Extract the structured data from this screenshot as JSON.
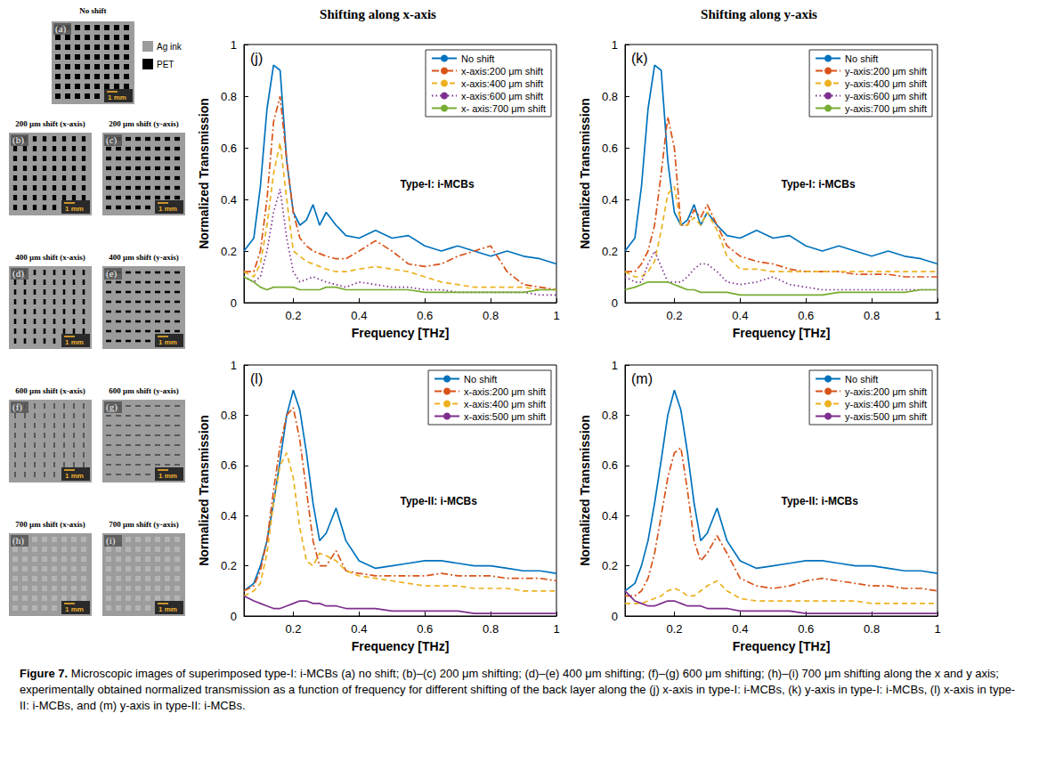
{
  "column_titles": [
    "Shifting along x-axis",
    "Shifting along y-axis"
  ],
  "images": {
    "legend": [
      {
        "label": "Ag ink",
        "color": "#9c9c9c"
      },
      {
        "label": "PET",
        "color": "#000000"
      }
    ],
    "scale_bar": "1 mm",
    "panels": [
      {
        "letter": "(a)",
        "title": "No shift",
        "shift_um": 0,
        "axis": null
      },
      {
        "letter": "(b)",
        "title": "200 μm shift (x-axis)",
        "shift_um": 200,
        "axis": "x"
      },
      {
        "letter": "(c)",
        "title": "200 μm shift (y-axis)",
        "shift_um": 200,
        "axis": "y"
      },
      {
        "letter": "(d)",
        "title": "400 μm shift (x-axis)",
        "shift_um": 400,
        "axis": "x"
      },
      {
        "letter": "(e)",
        "title": "400 μm shift (y-axis)",
        "shift_um": 400,
        "axis": "y"
      },
      {
        "letter": "(f)",
        "title": "600 μm shift (x-axis)",
        "shift_um": 600,
        "axis": "x"
      },
      {
        "letter": "(g)",
        "title": "600 μm shift (y-axis)",
        "shift_um": 600,
        "axis": "y"
      },
      {
        "letter": "(h)",
        "title": "700 μm shift (x-axis)",
        "shift_um": 700,
        "axis": "x"
      },
      {
        "letter": "(i)",
        "title": "700 μm shift (y-axis)",
        "shift_um": 700,
        "axis": "y"
      }
    ]
  },
  "chart_data": [
    {
      "type": "line",
      "panel": "(j)",
      "column": 0,
      "annotation": "Type-I: i-MCBs",
      "x_label": "Frequency [THz]",
      "y_label": "Normalized Transmission",
      "x": [
        0.05,
        0.08,
        0.1,
        0.12,
        0.14,
        0.16,
        0.18,
        0.2,
        0.22,
        0.24,
        0.26,
        0.28,
        0.3,
        0.33,
        0.36,
        0.4,
        0.45,
        0.5,
        0.55,
        0.6,
        0.65,
        0.7,
        0.75,
        0.8,
        0.85,
        0.9,
        0.95,
        1
      ],
      "xlim": [
        0.05,
        1
      ],
      "xticks": [
        0.2,
        0.4,
        0.6,
        0.8,
        1
      ],
      "ylim": [
        0,
        1
      ],
      "yticks": [
        0,
        0.2,
        0.4,
        0.6,
        0.8,
        1
      ],
      "grid": false,
      "legend": "upper right",
      "series": [
        {
          "name": "No shift",
          "color": "#0072BD",
          "line_style": "solid",
          "values": [
            0.2,
            0.25,
            0.45,
            0.75,
            0.92,
            0.9,
            0.55,
            0.35,
            0.3,
            0.32,
            0.38,
            0.3,
            0.35,
            0.3,
            0.26,
            0.25,
            0.28,
            0.25,
            0.26,
            0.22,
            0.2,
            0.22,
            0.2,
            0.18,
            0.2,
            0.18,
            0.17,
            0.15
          ]
        },
        {
          "name": "x-axis:200 μm shift",
          "color": "#D95319",
          "line_style": "dashdot",
          "values": [
            0.12,
            0.12,
            0.2,
            0.4,
            0.7,
            0.8,
            0.55,
            0.35,
            0.25,
            0.22,
            0.2,
            0.19,
            0.18,
            0.17,
            0.17,
            0.2,
            0.24,
            0.2,
            0.15,
            0.14,
            0.15,
            0.18,
            0.2,
            0.22,
            0.12,
            0.07,
            0.06,
            0.05
          ]
        },
        {
          "name": "x-axis:400 μm shift",
          "color": "#EDB120",
          "line_style": "dashed",
          "values": [
            0.12,
            0.1,
            0.15,
            0.3,
            0.5,
            0.62,
            0.4,
            0.2,
            0.18,
            0.16,
            0.15,
            0.14,
            0.13,
            0.12,
            0.12,
            0.13,
            0.14,
            0.13,
            0.12,
            0.1,
            0.08,
            0.07,
            0.06,
            0.06,
            0.06,
            0.06,
            0.05,
            0.05
          ]
        },
        {
          "name": "x-axis:600 μm shift",
          "color": "#7E2F8E",
          "line_style": "dotted",
          "values": [
            0.1,
            0.08,
            0.1,
            0.2,
            0.35,
            0.44,
            0.25,
            0.12,
            0.08,
            0.09,
            0.1,
            0.09,
            0.08,
            0.07,
            0.06,
            0.08,
            0.07,
            0.06,
            0.06,
            0.05,
            0.05,
            0.04,
            0.04,
            0.04,
            0.04,
            0.04,
            0.03,
            0.03
          ]
        },
        {
          "name": "x- axis:700 μm shift",
          "color": "#77AC30",
          "line_style": "solid",
          "values": [
            0.1,
            0.08,
            0.06,
            0.05,
            0.06,
            0.06,
            0.06,
            0.06,
            0.05,
            0.05,
            0.05,
            0.05,
            0.06,
            0.06,
            0.05,
            0.05,
            0.05,
            0.05,
            0.05,
            0.04,
            0.04,
            0.04,
            0.04,
            0.04,
            0.04,
            0.04,
            0.05,
            0.05
          ]
        }
      ]
    },
    {
      "type": "line",
      "panel": "(k)",
      "column": 1,
      "annotation": "Type-I: i-MCBs",
      "x_label": "Frequency [THz]",
      "y_label": "Normalized Transmission",
      "x": [
        0.05,
        0.08,
        0.1,
        0.12,
        0.14,
        0.16,
        0.18,
        0.2,
        0.22,
        0.24,
        0.26,
        0.28,
        0.3,
        0.33,
        0.36,
        0.4,
        0.45,
        0.5,
        0.55,
        0.6,
        0.65,
        0.7,
        0.75,
        0.8,
        0.85,
        0.9,
        0.95,
        1
      ],
      "xlim": [
        0.05,
        1
      ],
      "xticks": [
        0.2,
        0.4,
        0.6,
        0.8,
        1
      ],
      "ylim": [
        0,
        1
      ],
      "yticks": [
        0,
        0.2,
        0.4,
        0.6,
        0.8,
        1
      ],
      "grid": false,
      "legend": "upper right",
      "series": [
        {
          "name": "No shift",
          "color": "#0072BD",
          "line_style": "solid",
          "values": [
            0.2,
            0.25,
            0.45,
            0.75,
            0.92,
            0.9,
            0.55,
            0.35,
            0.3,
            0.32,
            0.38,
            0.3,
            0.35,
            0.3,
            0.26,
            0.25,
            0.28,
            0.25,
            0.26,
            0.22,
            0.2,
            0.22,
            0.2,
            0.18,
            0.2,
            0.18,
            0.17,
            0.15
          ]
        },
        {
          "name": "y-axis:200 μm shift",
          "color": "#D95319",
          "line_style": "dashdot",
          "values": [
            0.12,
            0.12,
            0.15,
            0.2,
            0.3,
            0.5,
            0.72,
            0.6,
            0.3,
            0.3,
            0.36,
            0.33,
            0.38,
            0.3,
            0.22,
            0.18,
            0.16,
            0.15,
            0.13,
            0.12,
            0.12,
            0.12,
            0.11,
            0.11,
            0.11,
            0.1,
            0.1,
            0.1
          ]
        },
        {
          "name": "y-axis:400 μm shift",
          "color": "#EDB120",
          "line_style": "dashed",
          "values": [
            0.12,
            0.1,
            0.1,
            0.12,
            0.16,
            0.28,
            0.42,
            0.45,
            0.3,
            0.3,
            0.33,
            0.3,
            0.35,
            0.28,
            0.18,
            0.13,
            0.13,
            0.12,
            0.12,
            0.12,
            0.12,
            0.12,
            0.12,
            0.12,
            0.12,
            0.12,
            0.12,
            0.12
          ]
        },
        {
          "name": "y-axis:600 μm shift",
          "color": "#7E2F8E",
          "line_style": "dotted",
          "values": [
            0.1,
            0.08,
            0.08,
            0.15,
            0.2,
            0.14,
            0.08,
            0.08,
            0.08,
            0.1,
            0.13,
            0.15,
            0.15,
            0.12,
            0.08,
            0.07,
            0.08,
            0.1,
            0.07,
            0.06,
            0.05,
            0.05,
            0.05,
            0.05,
            0.05,
            0.05,
            0.05,
            0.05
          ]
        },
        {
          "name": "y-axis:700 μm shift",
          "color": "#77AC30",
          "line_style": "solid",
          "values": [
            0.05,
            0.06,
            0.07,
            0.08,
            0.08,
            0.08,
            0.08,
            0.07,
            0.06,
            0.05,
            0.05,
            0.04,
            0.04,
            0.04,
            0.04,
            0.03,
            0.03,
            0.03,
            0.03,
            0.03,
            0.03,
            0.04,
            0.04,
            0.04,
            0.04,
            0.04,
            0.05,
            0.05
          ]
        }
      ]
    },
    {
      "type": "line",
      "panel": "(l)",
      "column": 0,
      "annotation": "Type-II: i-MCBs",
      "x_label": "Frequency [THz]",
      "y_label": "Normalized Transmission",
      "x": [
        0.05,
        0.08,
        0.1,
        0.12,
        0.14,
        0.16,
        0.18,
        0.2,
        0.22,
        0.24,
        0.26,
        0.28,
        0.3,
        0.33,
        0.36,
        0.4,
        0.45,
        0.5,
        0.55,
        0.6,
        0.65,
        0.7,
        0.75,
        0.8,
        0.85,
        0.9,
        0.95,
        1
      ],
      "xlim": [
        0.05,
        1
      ],
      "xticks": [
        0.2,
        0.4,
        0.6,
        0.8,
        1
      ],
      "ylim": [
        0,
        1
      ],
      "yticks": [
        0,
        0.2,
        0.4,
        0.6,
        0.8,
        1
      ],
      "grid": false,
      "legend": "upper right",
      "series": [
        {
          "name": "No shift",
          "color": "#0072BD",
          "line_style": "solid",
          "values": [
            0.1,
            0.13,
            0.2,
            0.3,
            0.45,
            0.62,
            0.8,
            0.9,
            0.82,
            0.65,
            0.45,
            0.3,
            0.33,
            0.43,
            0.3,
            0.22,
            0.19,
            0.2,
            0.21,
            0.22,
            0.22,
            0.21,
            0.2,
            0.2,
            0.19,
            0.18,
            0.18,
            0.17
          ]
        },
        {
          "name": "x-axis:200 μm shift",
          "color": "#D95319",
          "line_style": "dashdot",
          "values": [
            0.1,
            0.12,
            0.18,
            0.3,
            0.5,
            0.68,
            0.8,
            0.83,
            0.7,
            0.5,
            0.3,
            0.2,
            0.2,
            0.26,
            0.18,
            0.17,
            0.16,
            0.16,
            0.16,
            0.16,
            0.17,
            0.16,
            0.16,
            0.16,
            0.15,
            0.15,
            0.15,
            0.14
          ]
        },
        {
          "name": "x-axis:400 μm shift",
          "color": "#EDB120",
          "line_style": "dashed",
          "values": [
            0.08,
            0.1,
            0.13,
            0.25,
            0.45,
            0.6,
            0.65,
            0.55,
            0.35,
            0.22,
            0.2,
            0.25,
            0.24,
            0.22,
            0.18,
            0.16,
            0.15,
            0.14,
            0.13,
            0.12,
            0.12,
            0.12,
            0.11,
            0.11,
            0.11,
            0.1,
            0.1,
            0.1
          ]
        },
        {
          "name": "x-axis:500 μm shift",
          "color": "#7E2F8E",
          "line_style": "solid",
          "values": [
            0.08,
            0.06,
            0.05,
            0.04,
            0.03,
            0.03,
            0.04,
            0.05,
            0.06,
            0.06,
            0.05,
            0.05,
            0.04,
            0.04,
            0.03,
            0.03,
            0.03,
            0.02,
            0.02,
            0.02,
            0.02,
            0.02,
            0.01,
            0.01,
            0.01,
            0.01,
            0.01,
            0.01
          ]
        }
      ]
    },
    {
      "type": "line",
      "panel": "(m)",
      "column": 1,
      "annotation": "Type-II: i-MCBs",
      "x_label": "Frequency [THz]",
      "y_label": "Normalized Transmission",
      "x": [
        0.05,
        0.08,
        0.1,
        0.12,
        0.14,
        0.16,
        0.18,
        0.2,
        0.22,
        0.24,
        0.26,
        0.28,
        0.3,
        0.33,
        0.36,
        0.4,
        0.45,
        0.5,
        0.55,
        0.6,
        0.65,
        0.7,
        0.75,
        0.8,
        0.85,
        0.9,
        0.95,
        1
      ],
      "xlim": [
        0.05,
        1
      ],
      "xticks": [
        0.2,
        0.4,
        0.6,
        0.8,
        1
      ],
      "ylim": [
        0,
        1
      ],
      "yticks": [
        0,
        0.2,
        0.4,
        0.6,
        0.8,
        1
      ],
      "grid": false,
      "legend": "upper right",
      "series": [
        {
          "name": "No shift",
          "color": "#0072BD",
          "line_style": "solid",
          "values": [
            0.1,
            0.13,
            0.2,
            0.3,
            0.45,
            0.62,
            0.8,
            0.9,
            0.82,
            0.65,
            0.45,
            0.3,
            0.33,
            0.43,
            0.3,
            0.22,
            0.19,
            0.2,
            0.21,
            0.22,
            0.22,
            0.21,
            0.2,
            0.2,
            0.19,
            0.18,
            0.18,
            0.17
          ]
        },
        {
          "name": "y-axis:200 μm shift",
          "color": "#D95319",
          "line_style": "dashdot",
          "values": [
            0.08,
            0.08,
            0.1,
            0.15,
            0.25,
            0.4,
            0.55,
            0.65,
            0.67,
            0.5,
            0.3,
            0.22,
            0.25,
            0.32,
            0.25,
            0.15,
            0.12,
            0.11,
            0.12,
            0.14,
            0.15,
            0.14,
            0.13,
            0.12,
            0.12,
            0.11,
            0.11,
            0.1
          ]
        },
        {
          "name": "y-axis:400 μm shift",
          "color": "#EDB120",
          "line_style": "dashed",
          "values": [
            0.05,
            0.05,
            0.05,
            0.06,
            0.07,
            0.08,
            0.1,
            0.11,
            0.1,
            0.08,
            0.08,
            0.1,
            0.12,
            0.14,
            0.1,
            0.07,
            0.06,
            0.06,
            0.06,
            0.06,
            0.06,
            0.06,
            0.06,
            0.05,
            0.05,
            0.05,
            0.05,
            0.05
          ]
        },
        {
          "name": "y-axis:500 μm shift",
          "color": "#7E2F8E",
          "line_style": "solid",
          "values": [
            0.1,
            0.06,
            0.05,
            0.04,
            0.04,
            0.05,
            0.06,
            0.06,
            0.05,
            0.04,
            0.04,
            0.04,
            0.03,
            0.03,
            0.03,
            0.02,
            0.02,
            0.02,
            0.02,
            0.01,
            0.01,
            0.01,
            0.01,
            0.01,
            0.01,
            0.01,
            0.01,
            0.01
          ]
        }
      ]
    }
  ],
  "caption": {
    "label": "Figure 7.",
    "text": "Microscopic images of superimposed type-I: i-MCBs (a) no shift; (b)–(c) 200 μm shifting; (d)–(e) 400 μm shifting; (f)–(g) 600 μm shifting; (h)–(i) 700 μm shifting along the x and y axis; experimentally obtained normalized transmission as a function of frequency for different shifting of the back layer along the (j) x-axis in type-I: i-MCBs, (k) y-axis in type-I: i-MCBs, (l) x-axis in type-II: i-MCBs, and (m) y-axis in type-II: i-MCBs."
  }
}
